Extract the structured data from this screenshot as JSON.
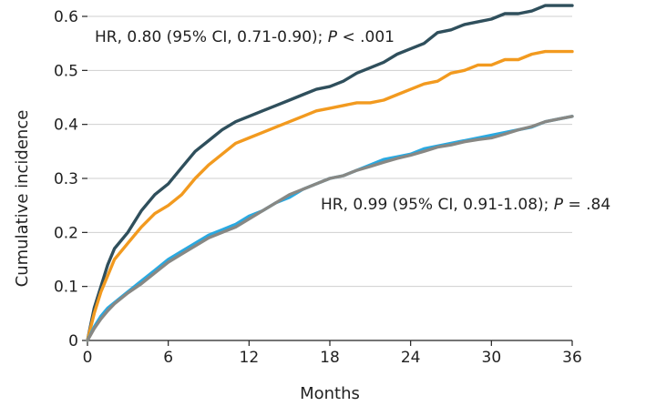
{
  "chart_data": {
    "type": "line",
    "title": "",
    "xlabel": "Months",
    "ylabel": "Cumulative incidence",
    "xlim": [
      0,
      36
    ],
    "ylim": [
      0,
      0.6
    ],
    "x_ticks": [
      0,
      6,
      12,
      18,
      24,
      30,
      36
    ],
    "y_ticks": [
      0,
      0.1,
      0.2,
      0.3,
      0.4,
      0.5,
      0.6
    ],
    "x_tick_labels": [
      "0",
      "6",
      "12",
      "18",
      "24",
      "30",
      "36"
    ],
    "y_tick_labels": [
      "0",
      "0.1",
      "0.2",
      "0.3",
      "0.4",
      "0.5",
      "0.6"
    ],
    "grid": "horizontal",
    "series": [
      {
        "color": "#2f4f5c",
        "x": [
          0,
          0.5,
          1,
          1.5,
          2,
          3,
          4,
          5,
          6,
          7,
          8,
          9,
          10,
          11,
          12,
          13,
          14,
          15,
          16,
          17,
          18,
          19,
          20,
          21,
          22,
          23,
          24,
          25,
          26,
          27,
          28,
          29,
          30,
          31,
          32,
          33,
          34,
          35,
          36
        ],
        "y": [
          0,
          0.06,
          0.1,
          0.14,
          0.17,
          0.2,
          0.24,
          0.27,
          0.29,
          0.32,
          0.35,
          0.37,
          0.39,
          0.405,
          0.415,
          0.425,
          0.435,
          0.445,
          0.455,
          0.465,
          0.47,
          0.48,
          0.495,
          0.505,
          0.515,
          0.53,
          0.54,
          0.55,
          0.57,
          0.575,
          0.585,
          0.59,
          0.595,
          0.605,
          0.605,
          0.61,
          0.62,
          0.62,
          0.62
        ]
      },
      {
        "color": "#f29a1f",
        "x": [
          0,
          0.5,
          1,
          1.5,
          2,
          3,
          4,
          5,
          6,
          7,
          8,
          9,
          10,
          11,
          12,
          13,
          14,
          15,
          16,
          17,
          18,
          19,
          20,
          21,
          22,
          23,
          24,
          25,
          26,
          27,
          28,
          29,
          30,
          31,
          32,
          33,
          34,
          35,
          36
        ],
        "y": [
          0,
          0.05,
          0.09,
          0.12,
          0.15,
          0.18,
          0.21,
          0.235,
          0.25,
          0.27,
          0.3,
          0.325,
          0.345,
          0.365,
          0.375,
          0.385,
          0.395,
          0.405,
          0.415,
          0.425,
          0.43,
          0.435,
          0.44,
          0.44,
          0.445,
          0.455,
          0.465,
          0.475,
          0.48,
          0.495,
          0.5,
          0.51,
          0.51,
          0.52,
          0.52,
          0.53,
          0.535,
          0.535,
          0.535
        ]
      },
      {
        "color": "#29a9e1",
        "x": [
          0,
          0.5,
          1,
          1.5,
          2,
          3,
          4,
          5,
          6,
          7,
          8,
          9,
          10,
          11,
          12,
          13,
          14,
          15,
          16,
          17,
          18,
          19,
          20,
          21,
          22,
          23,
          24,
          25,
          26,
          27,
          28,
          29,
          30,
          31,
          32,
          33,
          34,
          35,
          36
        ],
        "y": [
          0,
          0.025,
          0.045,
          0.06,
          0.07,
          0.09,
          0.11,
          0.13,
          0.15,
          0.165,
          0.18,
          0.195,
          0.205,
          0.215,
          0.23,
          0.24,
          0.255,
          0.265,
          0.28,
          0.29,
          0.3,
          0.305,
          0.315,
          0.325,
          0.335,
          0.34,
          0.345,
          0.355,
          0.36,
          0.365,
          0.37,
          0.375,
          0.38,
          0.385,
          0.39,
          0.395,
          0.405,
          0.41,
          0.415
        ]
      },
      {
        "color": "#888884",
        "x": [
          0,
          0.5,
          1,
          1.5,
          2,
          3,
          4,
          5,
          6,
          7,
          8,
          9,
          10,
          11,
          12,
          13,
          14,
          15,
          16,
          17,
          18,
          19,
          20,
          21,
          22,
          23,
          24,
          25,
          26,
          27,
          28,
          29,
          30,
          31,
          32,
          33,
          34,
          35,
          36
        ],
        "y": [
          0,
          0.022,
          0.04,
          0.055,
          0.068,
          0.088,
          0.105,
          0.125,
          0.145,
          0.16,
          0.175,
          0.19,
          0.2,
          0.21,
          0.225,
          0.24,
          0.255,
          0.27,
          0.28,
          0.29,
          0.3,
          0.305,
          0.315,
          0.322,
          0.33,
          0.337,
          0.343,
          0.35,
          0.358,
          0.362,
          0.368,
          0.372,
          0.375,
          0.382,
          0.39,
          0.396,
          0.405,
          0.41,
          0.415
        ]
      }
    ],
    "annotations": {
      "upper": {
        "prefix": "HR, 0.80 (95% CI, 0.71-0.90); ",
        "p_symbol": "P",
        "suffix": " < .001"
      },
      "lower": {
        "prefix": "HR, 0.99 (95% CI, 0.91-1.08); ",
        "p_symbol": "P",
        "suffix": " = .84"
      }
    }
  }
}
